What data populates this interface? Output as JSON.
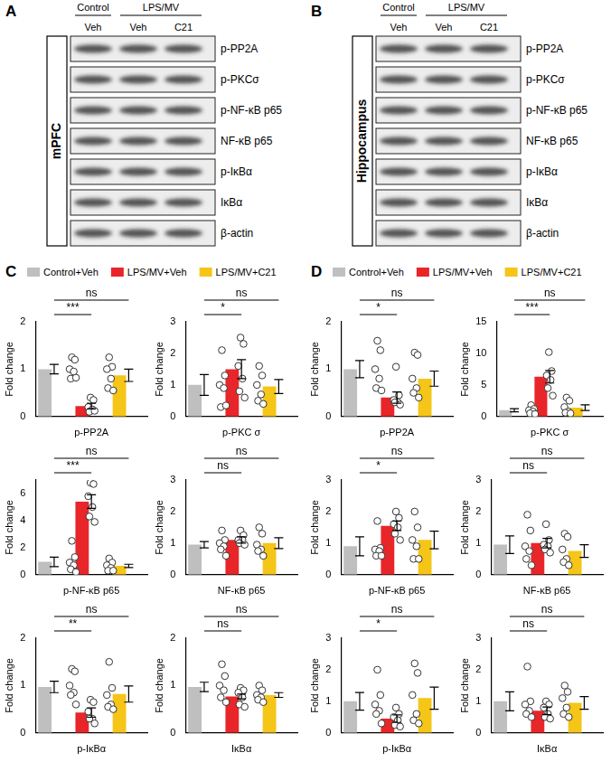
{
  "blots": [
    {
      "panel": "A",
      "region": "mPFC",
      "groups": [
        {
          "label": "Control",
          "lanes": [
            "Veh"
          ]
        },
        {
          "label": "LPS/MV",
          "lanes": [
            "Veh",
            "C21"
          ]
        }
      ],
      "proteins": [
        "p-PP2A",
        "p-PKCσ",
        "p-NF-κB p65",
        "NF-κB p65",
        "p-IκBα",
        "IκBα",
        "β-actin"
      ]
    },
    {
      "panel": "B",
      "region": "Hippocampus",
      "groups": [
        {
          "label": "Control",
          "lanes": [
            "Veh"
          ]
        },
        {
          "label": "LPS/MV",
          "lanes": [
            "Veh",
            "C21"
          ]
        }
      ],
      "proteins": [
        "p-PP2A",
        "p-PKCσ",
        "p-NF-κB p65",
        "NF-κB p65",
        "p-IκBα",
        "IκBα",
        "β-actin"
      ]
    }
  ],
  "chart_data": [
    {
      "panel": "C",
      "type": "bar",
      "x_label": "p-PP2A",
      "y_label": "Fold change",
      "categories": [
        "Control+Veh",
        "LPS/MV+Veh",
        "LPS/MV+C21"
      ],
      "colors": [
        "#bfbfbf",
        "#e8262a",
        "#f5c518"
      ],
      "values": [
        1.0,
        0.22,
        0.87
      ],
      "errors": [
        0.1,
        0.06,
        0.13
      ],
      "points": [
        [
          1.25,
          1.2,
          1.0,
          0.95,
          0.8,
          0.82
        ],
        [
          0.4,
          0.35,
          0.2,
          0.15,
          0.1,
          0.12
        ],
        [
          1.25,
          1.05,
          1.0,
          0.8,
          0.6,
          0.55
        ]
      ],
      "ylim": [
        0,
        2
      ],
      "yticks": [
        0,
        1,
        2
      ],
      "tick_labels": "y",
      "annotations": [
        {
          "between": [
            "Control+Veh",
            "LPS/MV+Veh"
          ],
          "text": "***"
        },
        {
          "between": [
            "Control+Veh",
            "LPS/MV+C21"
          ],
          "text": "ns"
        }
      ]
    },
    {
      "panel": "C",
      "type": "bar",
      "x_label": "p-PKC σ",
      "y_label": "Fold change",
      "categories": [
        "Control+Veh",
        "LPS/MV+Veh",
        "LPS/MV+C21"
      ],
      "colors": [
        "#bfbfbf",
        "#e8262a",
        "#f5c518"
      ],
      "values": [
        1.0,
        1.5,
        0.95
      ],
      "errors": [
        0.33,
        0.3,
        0.22
      ],
      "points": [
        [
          2.1,
          1.3,
          1.0,
          0.9,
          0.3,
          0.35
        ],
        [
          2.5,
          2.3,
          1.6,
          1.2,
          0.8,
          0.6
        ],
        [
          1.6,
          1.3,
          1.0,
          0.7,
          0.5,
          0.4
        ]
      ],
      "ylim": [
        0,
        3
      ],
      "yticks": [
        0,
        1,
        2,
        3
      ],
      "tick_labels": "y",
      "annotations": [
        {
          "between": [
            "Control+Veh",
            "LPS/MV+Veh"
          ],
          "text": "*"
        },
        {
          "between": [
            "Control+Veh",
            "LPS/MV+C21"
          ],
          "text": "ns"
        }
      ]
    },
    {
      "panel": "C",
      "type": "bar",
      "x_label": "p-NF-κB p65",
      "y_label": "Fold change",
      "categories": [
        "Control+Veh",
        "LPS/MV+Veh",
        "LPS/MV+C21"
      ],
      "colors": [
        "#bfbfbf",
        "#e8262a",
        "#f5c518"
      ],
      "values": [
        0.95,
        5.4,
        0.65
      ],
      "errors": [
        0.35,
        0.5,
        0.12
      ],
      "points": [
        [
          2.5,
          1.3,
          0.9,
          0.7,
          0.4,
          0.2
        ],
        [
          6.8,
          6.7,
          5.8,
          5.0,
          4.3,
          3.9
        ],
        [
          1.2,
          0.9,
          0.7,
          0.5,
          0.3,
          0.3
        ]
      ],
      "ylim": [
        0,
        7
      ],
      "yticks": [
        0,
        2,
        4,
        6
      ],
      "tick_labels": "y",
      "annotations": [
        {
          "between": [
            "Control+Veh",
            "LPS/MV+Veh"
          ],
          "text": "***"
        },
        {
          "between": [
            "Control+Veh",
            "LPS/MV+C21"
          ],
          "text": "ns"
        }
      ]
    },
    {
      "panel": "C",
      "type": "bar",
      "x_label": "NF-κB p65",
      "y_label": "Fold change",
      "categories": [
        "Control+Veh",
        "LPS/MV+Veh",
        "LPS/MV+C21"
      ],
      "colors": [
        "#bfbfbf",
        "#e8262a",
        "#f5c518"
      ],
      "values": [
        0.95,
        1.1,
        1.0
      ],
      "errors": [
        0.1,
        0.1,
        0.17
      ],
      "points": [
        [
          1.4,
          1.1,
          1.0,
          0.9,
          0.8,
          0.6
        ],
        [
          1.4,
          1.25,
          1.1,
          1.1,
          1.0,
          0.95
        ],
        [
          1.5,
          1.3,
          0.95,
          0.8,
          0.75,
          0.6
        ]
      ],
      "ylim": [
        0,
        3
      ],
      "yticks": [
        0,
        1,
        2,
        3
      ],
      "tick_labels": "y",
      "annotations": [
        {
          "between": [
            "Control+Veh",
            "LPS/MV+Veh"
          ],
          "text": "ns"
        },
        {
          "between": [
            "Control+Veh",
            "LPS/MV+C21"
          ],
          "text": "ns"
        }
      ]
    },
    {
      "panel": "C",
      "type": "bar",
      "x_label": "p-IκBα",
      "y_label": "Fold change",
      "categories": [
        "Control+Veh",
        "LPS/MV+Veh",
        "LPS/MV+C21"
      ],
      "colors": [
        "#bfbfbf",
        "#e8262a",
        "#f5c518"
      ],
      "values": [
        0.97,
        0.43,
        0.82
      ],
      "errors": [
        0.12,
        0.1,
        0.17
      ],
      "points": [
        [
          1.35,
          1.3,
          1.0,
          0.85,
          0.8,
          0.6
        ],
        [
          0.7,
          0.65,
          0.45,
          0.3,
          0.3,
          0.2
        ],
        [
          1.5,
          0.95,
          0.8,
          0.6,
          0.55,
          0.5
        ]
      ],
      "ylim": [
        0,
        2
      ],
      "yticks": [
        0,
        1,
        2
      ],
      "tick_labels": "y",
      "annotations": [
        {
          "between": [
            "Control+Veh",
            "LPS/MV+Veh"
          ],
          "text": "**"
        },
        {
          "between": [
            "Control+Veh",
            "LPS/MV+C21"
          ],
          "text": "ns"
        }
      ]
    },
    {
      "panel": "C",
      "type": "bar",
      "x_label": "IκBα",
      "y_label": "Fold change",
      "categories": [
        "Control+Veh",
        "LPS/MV+Veh",
        "LPS/MV+C21"
      ],
      "colors": [
        "#bfbfbf",
        "#e8262a",
        "#f5c518"
      ],
      "values": [
        0.97,
        0.77,
        0.8
      ],
      "errors": [
        0.1,
        0.05,
        0.05
      ],
      "points": [
        [
          1.45,
          1.2,
          1.0,
          0.9,
          0.75,
          0.65
        ],
        [
          0.95,
          0.9,
          0.85,
          0.75,
          0.6,
          0.55
        ],
        [
          1.0,
          0.9,
          0.8,
          0.75,
          0.7,
          0.65
        ]
      ],
      "ylim": [
        0,
        2
      ],
      "yticks": [
        0,
        1,
        2
      ],
      "tick_labels": "y",
      "annotations": [
        {
          "between": [
            "Control+Veh",
            "LPS/MV+Veh"
          ],
          "text": "ns"
        },
        {
          "between": [
            "Control+Veh",
            "LPS/MV+C21"
          ],
          "text": "ns"
        }
      ]
    },
    {
      "panel": "D",
      "type": "bar",
      "x_label": "p-PP2A",
      "y_label": "Fold change",
      "categories": [
        "Control+Veh",
        "LPS/MV+Veh",
        "LPS/MV+C21"
      ],
      "colors": [
        "#bfbfbf",
        "#e8262a",
        "#f5c518"
      ],
      "values": [
        1.0,
        0.4,
        0.8
      ],
      "errors": [
        0.18,
        0.12,
        0.16
      ],
      "points": [
        [
          1.6,
          1.4,
          1.0,
          0.8,
          0.6,
          0.55
        ],
        [
          1.05,
          0.45,
          0.35,
          0.3,
          0.3,
          0.25
        ],
        [
          1.35,
          1.3,
          0.8,
          0.6,
          0.5,
          0.4
        ]
      ],
      "ylim": [
        0,
        2
      ],
      "yticks": [
        0,
        1,
        2
      ],
      "tick_labels": "y",
      "annotations": [
        {
          "between": [
            "Control+Veh",
            "LPS/MV+Veh"
          ],
          "text": "*"
        },
        {
          "between": [
            "Control+Veh",
            "LPS/MV+C21"
          ],
          "text": "ns"
        }
      ]
    },
    {
      "panel": "D",
      "type": "bar",
      "x_label": "p-PKC σ",
      "y_label": "Fold change",
      "categories": [
        "Control+Veh",
        "LPS/MV+Veh",
        "LPS/MV+C21"
      ],
      "colors": [
        "#bfbfbf",
        "#e8262a",
        "#f5c518"
      ],
      "values": [
        1.0,
        6.3,
        1.4
      ],
      "errors": [
        0.25,
        1.0,
        0.45
      ],
      "points": [
        [
          1.8,
          1.2,
          1.0,
          0.8,
          0.5,
          0.4
        ],
        [
          10.2,
          7.2,
          6.5,
          5.8,
          4.5,
          3.3
        ],
        [
          3.0,
          2.5,
          1.5,
          0.8,
          0.6,
          0.5
        ]
      ],
      "ylim": [
        0,
        15
      ],
      "yticks": [
        0,
        5,
        10,
        15
      ],
      "tick_labels": "y",
      "annotations": [
        {
          "between": [
            "Control+Veh",
            "LPS/MV+Veh"
          ],
          "text": "***"
        },
        {
          "between": [
            "Control+Veh",
            "LPS/MV+C21"
          ],
          "text": "ns"
        }
      ]
    },
    {
      "panel": "D",
      "type": "bar",
      "x_label": "p-NF-κB p65",
      "y_label": "Fold change",
      "categories": [
        "Control+Veh",
        "LPS/MV+Veh",
        "LPS/MV+C21"
      ],
      "colors": [
        "#bfbfbf",
        "#e8262a",
        "#f5c518"
      ],
      "values": [
        0.9,
        1.55,
        1.1
      ],
      "errors": [
        0.3,
        0.15,
        0.28
      ],
      "points": [
        [
          1.7,
          0.85,
          0.8,
          0.75,
          0.6,
          0.6
        ],
        [
          2.0,
          1.8,
          1.6,
          1.5,
          1.3,
          1.1
        ],
        [
          2.0,
          1.5,
          1.1,
          0.9,
          0.5,
          0.5
        ]
      ],
      "ylim": [
        0,
        3
      ],
      "yticks": [
        0,
        1,
        2,
        3
      ],
      "tick_labels": "y",
      "annotations": [
        {
          "between": [
            "Control+Veh",
            "LPS/MV+Veh"
          ],
          "text": "*"
        },
        {
          "between": [
            "Control+Veh",
            "LPS/MV+C21"
          ],
          "text": "ns"
        }
      ]
    },
    {
      "panel": "D",
      "type": "bar",
      "x_label": "NF-κB p65",
      "y_label": "Fold change",
      "categories": [
        "Control+Veh",
        "LPS/MV+Veh",
        "LPS/MV+C21"
      ],
      "colors": [
        "#bfbfbf",
        "#e8262a",
        "#f5c518"
      ],
      "values": [
        0.95,
        1.0,
        0.75
      ],
      "errors": [
        0.28,
        0.15,
        0.2
      ],
      "points": [
        [
          1.9,
          1.4,
          0.9,
          0.75,
          0.5,
          0.3
        ],
        [
          1.6,
          1.1,
          0.95,
          0.9,
          0.8,
          0.7
        ],
        [
          1.3,
          1.2,
          0.8,
          0.5,
          0.4,
          0.3
        ]
      ],
      "ylim": [
        0,
        3
      ],
      "yticks": [
        0,
        1,
        2,
        3
      ],
      "tick_labels": "y",
      "annotations": [
        {
          "between": [
            "Control+Veh",
            "LPS/MV+Veh"
          ],
          "text": "ns"
        },
        {
          "between": [
            "Control+Veh",
            "LPS/MV+C21"
          ],
          "text": "ns"
        }
      ]
    },
    {
      "panel": "D",
      "type": "bar",
      "x_label": "p-IκBα",
      "y_label": "Fold change",
      "categories": [
        "Control+Veh",
        "LPS/MV+Veh",
        "LPS/MV+C21"
      ],
      "colors": [
        "#bfbfbf",
        "#e8262a",
        "#f5c518"
      ],
      "values": [
        1.0,
        0.45,
        1.1
      ],
      "errors": [
        0.28,
        0.12,
        0.35
      ],
      "points": [
        [
          2.0,
          1.2,
          0.9,
          0.7,
          0.6,
          0.3
        ],
        [
          0.8,
          0.6,
          0.5,
          0.4,
          0.25,
          0.2
        ],
        [
          2.2,
          1.9,
          1.2,
          0.6,
          0.4,
          0.3
        ]
      ],
      "ylim": [
        0,
        3
      ],
      "yticks": [
        0,
        1,
        2,
        3
      ],
      "tick_labels": "y",
      "annotations": [
        {
          "between": [
            "Control+Veh",
            "LPS/MV+Veh"
          ],
          "text": "*"
        },
        {
          "between": [
            "Control+Veh",
            "LPS/MV+C21"
          ],
          "text": "ns"
        }
      ]
    },
    {
      "panel": "D",
      "type": "bar",
      "x_label": "IκBα",
      "y_label": "Fold change",
      "categories": [
        "Control+Veh",
        "LPS/MV+Veh",
        "LPS/MV+C21"
      ],
      "colors": [
        "#bfbfbf",
        "#e8262a",
        "#f5c518"
      ],
      "values": [
        1.0,
        0.7,
        0.95
      ],
      "errors": [
        0.3,
        0.12,
        0.2
      ],
      "points": [
        [
          2.1,
          1.0,
          0.9,
          0.7,
          0.6,
          0.5
        ],
        [
          1.0,
          0.9,
          0.8,
          0.6,
          0.5,
          0.45
        ],
        [
          1.5,
          1.3,
          1.1,
          0.8,
          0.6,
          0.5
        ]
      ],
      "ylim": [
        0,
        3
      ],
      "yticks": [
        0,
        1,
        2,
        3
      ],
      "tick_labels": "y",
      "annotations": [
        {
          "between": [
            "Control+Veh",
            "LPS/MV+Veh"
          ],
          "text": "ns"
        },
        {
          "between": [
            "Control+Veh",
            "LPS/MV+C21"
          ],
          "text": "ns"
        }
      ]
    }
  ]
}
